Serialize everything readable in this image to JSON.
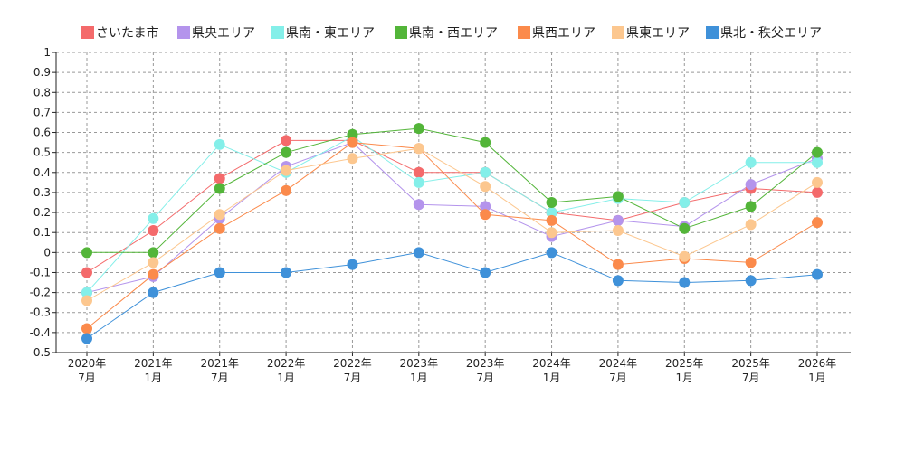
{
  "chart_data": {
    "type": "line",
    "title": "",
    "xlabel": "",
    "ylabel": "",
    "ylim": [
      -0.5,
      1
    ],
    "y_ticks": [
      "1",
      "0.9",
      "0.8",
      "0.7",
      "0.6",
      "0.5",
      "0.4",
      "0.3",
      "0.2",
      "0.1",
      "0",
      "-0.1",
      "-0.2",
      "-0.3",
      "-0.4",
      "-0.5"
    ],
    "y_tick_values": [
      1,
      0.9,
      0.8,
      0.7,
      0.6,
      0.5,
      0.4,
      0.3,
      0.2,
      0.1,
      0,
      -0.1,
      -0.2,
      -0.3,
      -0.4,
      -0.5
    ],
    "categories": [
      {
        "line1": "2020年",
        "line2": "7月"
      },
      {
        "line1": "2021年",
        "line2": "1月"
      },
      {
        "line1": "2021年",
        "line2": "7月"
      },
      {
        "line1": "2022年",
        "line2": "1月"
      },
      {
        "line1": "2022年",
        "line2": "7月"
      },
      {
        "line1": "2023年",
        "line2": "1月"
      },
      {
        "line1": "2023年",
        "line2": "7月"
      },
      {
        "line1": "2024年",
        "line2": "1月"
      },
      {
        "line1": "2024年",
        "line2": "7月"
      },
      {
        "line1": "2025年",
        "line2": "1月"
      },
      {
        "line1": "2025年",
        "line2": "7月"
      },
      {
        "line1": "2026年",
        "line2": "1月"
      }
    ],
    "grid": true,
    "legend_position": "top",
    "series": [
      {
        "name": "さいたま市",
        "color": "#f46a6b",
        "values": [
          -0.1,
          0.11,
          0.37,
          0.56,
          0.56,
          0.4,
          0.4,
          0.2,
          0.16,
          0.25,
          0.32,
          0.3
        ]
      },
      {
        "name": "県央エリア",
        "color": "#b494ec",
        "values": [
          -0.2,
          -0.12,
          0.17,
          0.43,
          0.55,
          0.24,
          0.23,
          0.08,
          0.16,
          0.13,
          0.34,
          0.47
        ]
      },
      {
        "name": "県南・東エリア",
        "color": "#84efe9",
        "values": [
          -0.2,
          0.17,
          0.54,
          0.4,
          0.58,
          0.35,
          0.4,
          0.2,
          0.27,
          0.25,
          0.45,
          0.45
        ]
      },
      {
        "name": "県南・西エリア",
        "color": "#53b539",
        "values": [
          0.0,
          0.0,
          0.32,
          0.5,
          0.59,
          0.62,
          0.55,
          0.25,
          0.28,
          0.12,
          0.23,
          0.5
        ]
      },
      {
        "name": "県西エリア",
        "color": "#fb8a4b",
        "values": [
          -0.38,
          -0.11,
          0.12,
          0.31,
          0.55,
          0.52,
          0.19,
          0.16,
          -0.06,
          -0.03,
          -0.05,
          0.15
        ]
      },
      {
        "name": "県東エリア",
        "color": "#fcc78f",
        "values": [
          -0.24,
          -0.05,
          0.19,
          0.41,
          0.47,
          0.52,
          0.33,
          0.1,
          0.11,
          -0.02,
          0.14,
          0.35
        ]
      },
      {
        "name": "県北・秩父エリア",
        "color": "#3f91d9",
        "values": [
          -0.43,
          -0.2,
          -0.1,
          -0.1,
          -0.06,
          0.0,
          -0.1,
          0.0,
          -0.14,
          -0.15,
          -0.14,
          -0.11
        ]
      }
    ]
  }
}
